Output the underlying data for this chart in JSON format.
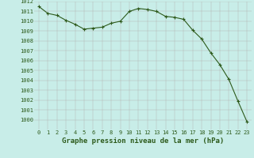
{
  "x": [
    0,
    1,
    2,
    3,
    4,
    5,
    6,
    7,
    8,
    9,
    10,
    11,
    12,
    13,
    14,
    15,
    16,
    17,
    18,
    19,
    20,
    21,
    22,
    23
  ],
  "y": [
    1011.5,
    1010.8,
    1010.6,
    1010.1,
    1009.7,
    1009.2,
    1009.3,
    1009.4,
    1009.8,
    1010.0,
    1011.0,
    1011.3,
    1011.2,
    1011.0,
    1010.5,
    1010.4,
    1010.2,
    1009.1,
    1008.2,
    1006.8,
    1005.6,
    1004.1,
    1001.9,
    999.8
  ],
  "line_color": "#2d5a1b",
  "marker": "+",
  "marker_size": 3,
  "marker_color": "#2d5a1b",
  "background_color": "#c8ede8",
  "grid_color": "#b0b0b0",
  "xlabel": "Graphe pression niveau de la mer (hPa)",
  "xlabel_fontsize": 6.5,
  "ylim": [
    999,
    1012
  ],
  "yticks": [
    1000,
    1001,
    1002,
    1003,
    1004,
    1005,
    1006,
    1007,
    1008,
    1009,
    1010,
    1011,
    1012
  ],
  "xticks": [
    0,
    1,
    2,
    3,
    4,
    5,
    6,
    7,
    8,
    9,
    10,
    11,
    12,
    13,
    14,
    15,
    16,
    17,
    18,
    19,
    20,
    21,
    22,
    23
  ],
  "tick_fontsize": 5.0,
  "tick_color": "#2d5a1b",
  "line_width": 0.8
}
